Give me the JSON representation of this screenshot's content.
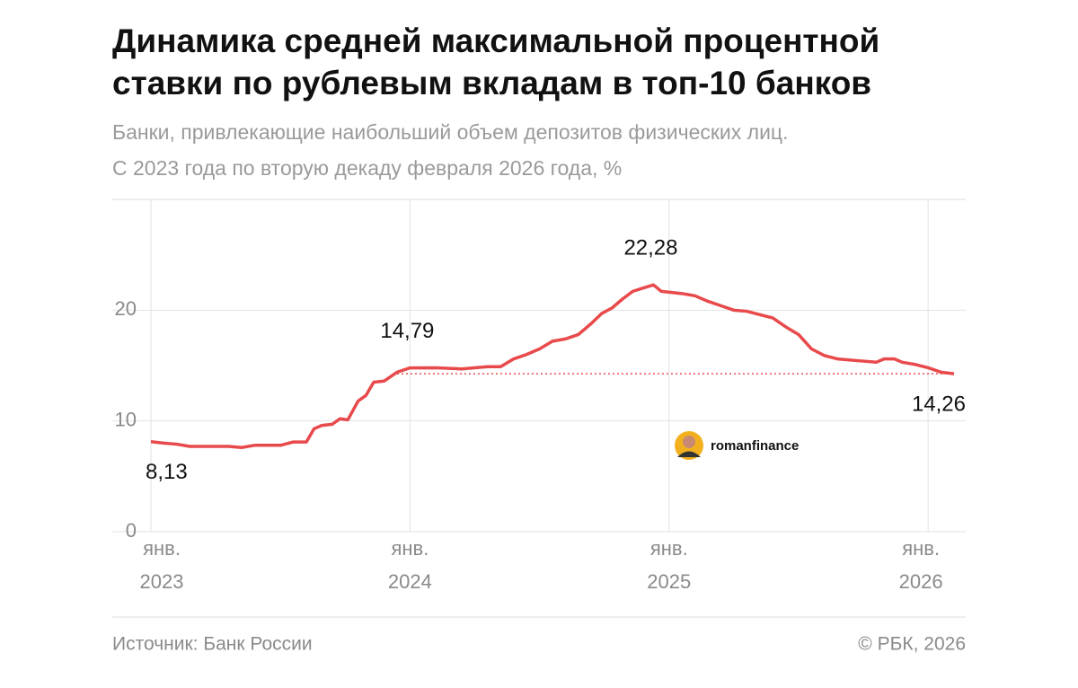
{
  "chart_data": {
    "type": "line",
    "title": [
      "Динамика средней максимальной процентной",
      "ставки по рублевым вкладам в топ-10 банков"
    ],
    "subtitle": [
      "Банки, привлекающие наибольший объем депозитов физических лиц.",
      "С 2023 года по вторую декаду февраля 2026 года, %"
    ],
    "color": "#e84a4c",
    "x": [
      2023.0,
      2023.05,
      2023.1,
      2023.15,
      2023.3,
      2023.35,
      2023.4,
      2023.5,
      2023.55,
      2023.6,
      2023.63,
      2023.66,
      2023.7,
      2023.73,
      2023.76,
      2023.8,
      2023.83,
      2023.86,
      2023.9,
      2023.95,
      2024.0,
      2024.1,
      2024.2,
      2024.3,
      2024.35,
      2024.4,
      2024.45,
      2024.5,
      2024.55,
      2024.6,
      2024.65,
      2024.7,
      2024.74,
      2024.78,
      2024.82,
      2024.86,
      2024.9,
      2024.94,
      2024.97,
      2025.05,
      2025.1,
      2025.15,
      2025.2,
      2025.25,
      2025.3,
      2025.35,
      2025.4,
      2025.45,
      2025.5,
      2025.55,
      2025.6,
      2025.65,
      2025.7,
      2025.75,
      2025.8,
      2025.83,
      2025.87,
      2025.9,
      2025.95,
      2026.0,
      2026.05,
      2026.1
    ],
    "values": [
      8.13,
      8.0,
      7.9,
      7.7,
      7.7,
      7.6,
      7.8,
      7.8,
      8.1,
      8.1,
      9.3,
      9.6,
      9.7,
      10.2,
      10.1,
      11.8,
      12.3,
      13.5,
      13.6,
      14.4,
      14.79,
      14.8,
      14.7,
      14.9,
      14.9,
      15.6,
      16.0,
      16.5,
      17.2,
      17.4,
      17.8,
      18.8,
      19.7,
      20.2,
      21.0,
      21.7,
      22.0,
      22.28,
      21.7,
      21.5,
      21.3,
      20.8,
      20.4,
      20.0,
      19.9,
      19.6,
      19.3,
      18.5,
      17.8,
      16.5,
      15.9,
      15.6,
      15.5,
      15.4,
      15.3,
      15.6,
      15.6,
      15.3,
      15.1,
      14.8,
      14.4,
      14.26
    ],
    "value_labels": [
      "8,13",
      null,
      null,
      null,
      null,
      null,
      null,
      null,
      null,
      null,
      null,
      null,
      null,
      null,
      null,
      null,
      null,
      null,
      null,
      null,
      "14,79",
      null,
      null,
      null,
      null,
      null,
      null,
      null,
      null,
      null,
      null,
      null,
      null,
      null,
      null,
      null,
      null,
      "22,28",
      null,
      null,
      null,
      null,
      null,
      null,
      null,
      null,
      null,
      null,
      null,
      null,
      null,
      null,
      null,
      null,
      null,
      null,
      null,
      null,
      null,
      null,
      null,
      "14,26"
    ],
    "reference_line": {
      "value": 14.26,
      "start": 2023.95
    },
    "xlim": [
      2023.0,
      2026.1
    ],
    "xticks": [
      {
        "value": 2023,
        "label": "янв. 2023"
      },
      {
        "value": 2024,
        "label": "янв. 2024"
      },
      {
        "value": 2025,
        "label": "янв. 2025"
      },
      {
        "value": 2026,
        "label": "янв. 2026"
      }
    ],
    "ylim": [
      0,
      30
    ],
    "yticks": [
      0,
      10,
      20
    ],
    "grid": true,
    "watermark": "romanfinance",
    "source": "Источник: Банк России",
    "copyright": "© РБК, 2026"
  }
}
